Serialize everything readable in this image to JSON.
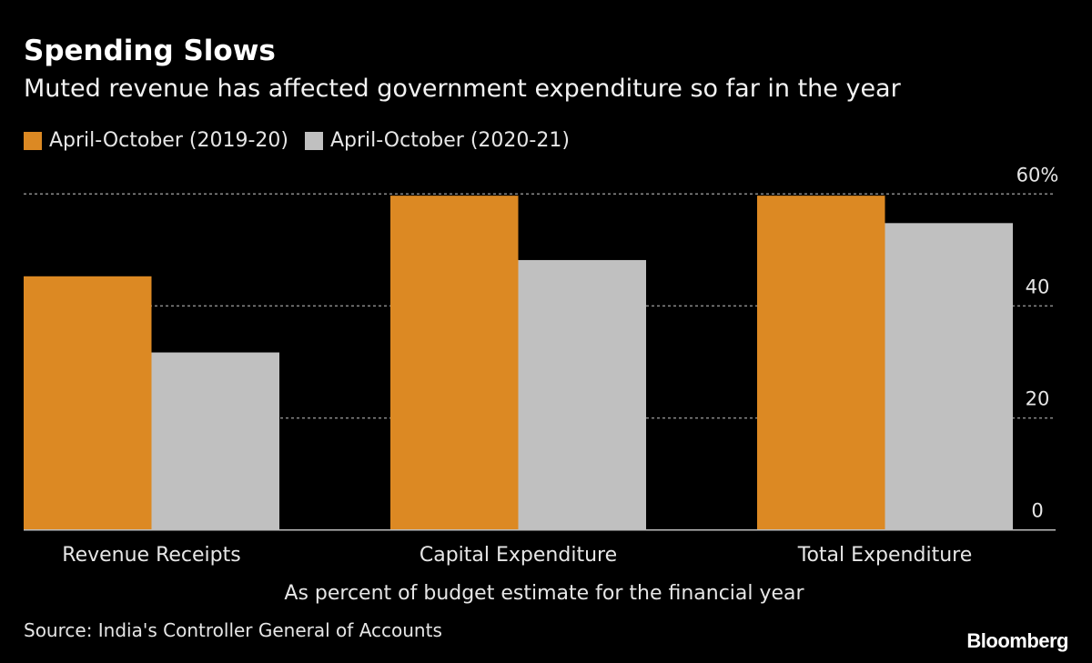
{
  "header": {
    "title": "Spending Slows",
    "subtitle": "Muted revenue has affected government expenditure so far in the year"
  },
  "footer": {
    "source": "Source: India's Controller General of Accounts",
    "logo": "Bloomberg"
  },
  "chart_data": {
    "type": "bar",
    "title": "Spending Slows",
    "subtitle": "Muted revenue has affected government expenditure so far in the year",
    "categories": [
      "Revenue Receipts",
      "Capital Expenditure",
      "Total Expenditure"
    ],
    "series": [
      {
        "name": "April-October (2019-20)",
        "color": "#dc8923",
        "values": [
          45.3,
          59.7,
          59.7
        ]
      },
      {
        "name": "April-October (2020-21)",
        "color": "#c0c0c0",
        "values": [
          31.7,
          48.2,
          54.8
        ]
      }
    ],
    "xlabel": "As percent of budget estimate for the financial year",
    "ylabel": "",
    "ylim": [
      0,
      60
    ],
    "yticks": [
      0,
      20,
      40,
      60
    ],
    "ytick_labels": [
      "0",
      "20",
      "40",
      "60%"
    ],
    "y_axis_side": "right",
    "grid": true,
    "legend_position": "top-left",
    "background": "#000000"
  }
}
